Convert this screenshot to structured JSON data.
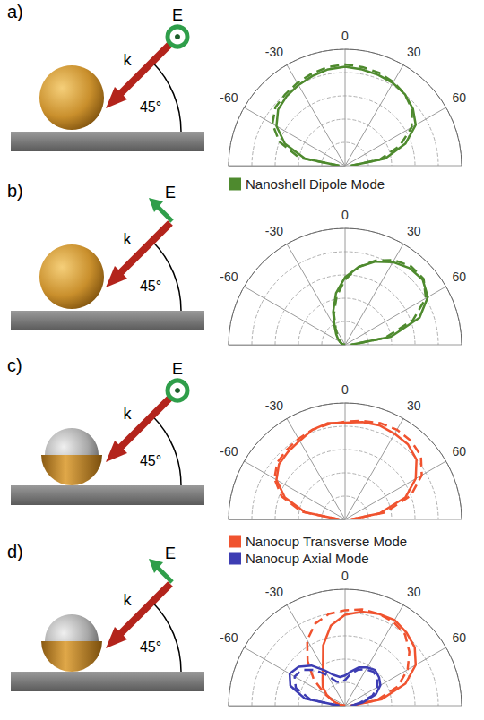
{
  "chart_data": [
    {
      "type": "polar",
      "title": "a)",
      "annotations": [
        "E",
        "k",
        "45°"
      ],
      "x": [
        -90,
        -80,
        -70,
        -60,
        -50,
        -40,
        -30,
        -20,
        -10,
        0,
        10,
        20,
        30,
        40,
        50,
        60,
        70,
        80,
        90
      ],
      "xlim": [
        -90,
        90
      ],
      "xticks": [
        -60,
        -30,
        0,
        30,
        60
      ],
      "ylim": [
        0,
        1
      ],
      "yticks": [
        0,
        0.2,
        0.4,
        0.6,
        0.8,
        1
      ],
      "tick_labels": "x",
      "grid": true,
      "legend": "bottom",
      "series": [
        {
          "name": "Nanoshell Dipole Mode",
          "color": "#4e8a2e",
          "line_style": "solid",
          "values": [
            0.05,
            0.35,
            0.55,
            0.68,
            0.75,
            0.78,
            0.8,
            0.82,
            0.84,
            0.85,
            0.84,
            0.83,
            0.82,
            0.8,
            0.76,
            0.7,
            0.55,
            0.35,
            0.05
          ]
        },
        {
          "name": "Nanoshell Dipole Mode",
          "color": "#4e8a2e",
          "line_style": "dashed",
          "values": [
            0.05,
            0.4,
            0.6,
            0.72,
            0.78,
            0.8,
            0.82,
            0.84,
            0.86,
            0.87,
            0.86,
            0.85,
            0.83,
            0.8,
            0.75,
            0.66,
            0.5,
            0.3,
            0.05
          ]
        }
      ]
    },
    {
      "type": "polar",
      "title": "b)",
      "annotations": [
        "E",
        "k",
        "45°"
      ],
      "x": [
        -90,
        -80,
        -70,
        -60,
        -50,
        -40,
        -30,
        -20,
        -10,
        0,
        10,
        20,
        30,
        40,
        50,
        60,
        70,
        80,
        90
      ],
      "xlim": [
        -90,
        90
      ],
      "xticks": [
        -60,
        -30,
        0,
        30,
        60
      ],
      "ylim": [
        0,
        1
      ],
      "yticks": [
        0,
        0.2,
        0.4,
        0.6,
        0.8,
        1
      ],
      "tick_labels": "x",
      "grid": true,
      "series": [
        {
          "name": "Nanoshell Dipole Mode",
          "color": "#4e8a2e",
          "line_style": "solid",
          "values": [
            0,
            0.02,
            0.03,
            0.05,
            0.08,
            0.12,
            0.18,
            0.3,
            0.45,
            0.58,
            0.68,
            0.76,
            0.82,
            0.86,
            0.87,
            0.82,
            0.68,
            0.4,
            0.05
          ]
        },
        {
          "name": "Nanoshell Dipole Mode",
          "color": "#4e8a2e",
          "line_style": "dashed",
          "values": [
            0,
            0.02,
            0.03,
            0.05,
            0.07,
            0.1,
            0.16,
            0.28,
            0.42,
            0.56,
            0.68,
            0.77,
            0.84,
            0.88,
            0.88,
            0.8,
            0.62,
            0.35,
            0.05
          ]
        }
      ]
    },
    {
      "type": "polar",
      "title": "c)",
      "annotations": [
        "E",
        "k",
        "45°"
      ],
      "x": [
        -90,
        -80,
        -70,
        -60,
        -50,
        -40,
        -30,
        -20,
        -10,
        0,
        10,
        20,
        30,
        40,
        50,
        60,
        70,
        80,
        90
      ],
      "xlim": [
        -90,
        90
      ],
      "xticks": [
        -60,
        -30,
        0,
        30,
        60
      ],
      "ylim": [
        0,
        1
      ],
      "yticks": [
        0,
        0.2,
        0.4,
        0.6,
        0.8,
        1
      ],
      "tick_labels": "x",
      "grid": true,
      "series": [
        {
          "name": "Nanocup Transverse Mode",
          "color": "#f0532f",
          "line_style": "solid",
          "values": [
            0.05,
            0.35,
            0.55,
            0.68,
            0.74,
            0.76,
            0.78,
            0.82,
            0.84,
            0.83,
            0.85,
            0.86,
            0.85,
            0.84,
            0.8,
            0.7,
            0.55,
            0.3,
            0.05
          ]
        },
        {
          "name": "Nanocup Transverse Mode",
          "color": "#f0532f",
          "line_style": "dashed",
          "values": [
            0.05,
            0.38,
            0.58,
            0.7,
            0.76,
            0.78,
            0.8,
            0.82,
            0.83,
            0.84,
            0.86,
            0.88,
            0.89,
            0.88,
            0.85,
            0.76,
            0.6,
            0.35,
            0.05
          ]
        }
      ]
    },
    {
      "type": "polar",
      "title": "d)",
      "annotations": [
        "E",
        "k",
        "45°"
      ],
      "x": [
        -90,
        -80,
        -70,
        -60,
        -50,
        -40,
        -30,
        -20,
        -10,
        0,
        10,
        20,
        30,
        40,
        50,
        60,
        70,
        80,
        90
      ],
      "xlim": [
        -90,
        90
      ],
      "xticks": [
        -60,
        -30,
        0,
        30,
        60
      ],
      "ylim": [
        0,
        1
      ],
      "yticks": [
        0,
        0.2,
        0.4,
        0.6,
        0.8,
        1
      ],
      "tick_labels": "x",
      "grid": true,
      "legend": "top",
      "series": [
        {
          "name": "Nanocup Transverse Mode",
          "color": "#f0532f",
          "line_style": "solid",
          "values": [
            0,
            0.05,
            0.1,
            0.18,
            0.25,
            0.3,
            0.38,
            0.55,
            0.7,
            0.78,
            0.82,
            0.84,
            0.85,
            0.82,
            0.78,
            0.7,
            0.55,
            0.32,
            0.05
          ]
        },
        {
          "name": "Nanocup Transverse Mode",
          "color": "#f0532f",
          "line_style": "dashed",
          "values": [
            0,
            0.05,
            0.1,
            0.2,
            0.35,
            0.5,
            0.65,
            0.75,
            0.8,
            0.82,
            0.84,
            0.84,
            0.83,
            0.8,
            0.72,
            0.62,
            0.48,
            0.28,
            0.05
          ]
        },
        {
          "name": "Nanocup Axial Mode",
          "color": "#3d3db3",
          "line_style": "solid",
          "values": [
            0.05,
            0.35,
            0.5,
            0.55,
            0.52,
            0.45,
            0.35,
            0.28,
            0.25,
            0.26,
            0.3,
            0.35,
            0.38,
            0.4,
            0.38,
            0.35,
            0.28,
            0.15,
            0.05
          ]
        },
        {
          "name": "Nanocup Axial Mode",
          "color": "#3d3db3",
          "line_style": "dashed",
          "values": [
            0.05,
            0.3,
            0.45,
            0.5,
            0.48,
            0.4,
            0.3,
            0.22,
            0.2,
            0.22,
            0.28,
            0.33,
            0.36,
            0.38,
            0.36,
            0.32,
            0.25,
            0.12,
            0.05
          ]
        }
      ]
    }
  ]
}
